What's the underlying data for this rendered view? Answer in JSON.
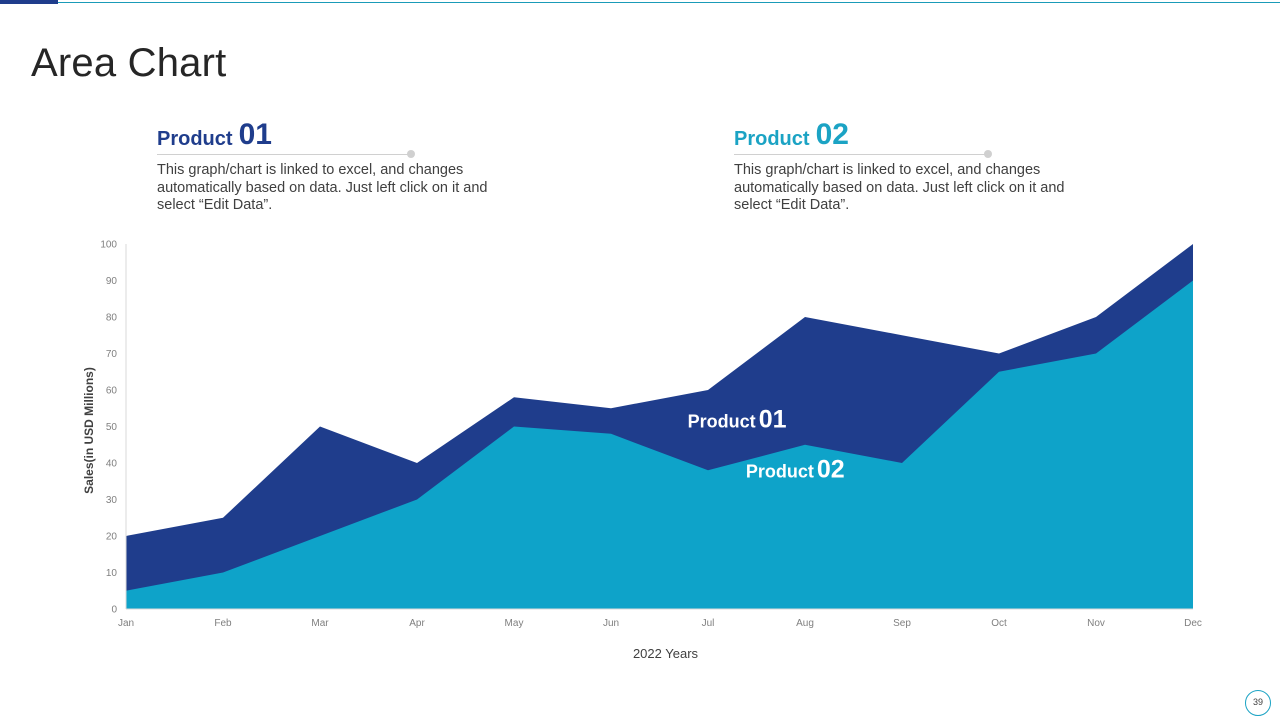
{
  "page": {
    "title": "Area Chart",
    "page_number": "39"
  },
  "legend": [
    {
      "name": "Product",
      "number": "01",
      "color": "#1f3d8c",
      "description": "This graph/chart is linked to excel, and changes automatically based on data. Just left click on it and select “Edit Data”."
    },
    {
      "name": "Product",
      "number": "02",
      "color": "#1ba3c4",
      "description": "This graph/chart is linked to excel, and changes automatically based on data. Just left click on it and select “Edit Data”."
    }
  ],
  "chart_data": {
    "type": "area",
    "title": "",
    "xlabel": "2022 Years",
    "ylabel": "Sales(in USD Millions)",
    "ylim": [
      0,
      100
    ],
    "yticks": [
      0,
      10,
      20,
      30,
      40,
      50,
      60,
      70,
      80,
      90,
      100
    ],
    "categories": [
      "Jan",
      "Feb",
      "Mar",
      "Apr",
      "May",
      "Jun",
      "Jul",
      "Aug",
      "Sep",
      "Oct",
      "Nov",
      "Dec"
    ],
    "series": [
      {
        "name": "Product 01",
        "color": "#1f3d8c",
        "values": [
          20,
          25,
          50,
          40,
          58,
          55,
          60,
          80,
          75,
          70,
          80,
          100
        ]
      },
      {
        "name": "Product 02",
        "color": "#0ea3c9",
        "values": [
          5,
          10,
          20,
          30,
          50,
          48,
          38,
          45,
          40,
          65,
          70,
          90
        ]
      }
    ],
    "annotations": [
      {
        "name": "Product",
        "number": "01",
        "series": "Product 01"
      },
      {
        "name": "Product",
        "number": "02",
        "series": "Product 02"
      }
    ]
  }
}
